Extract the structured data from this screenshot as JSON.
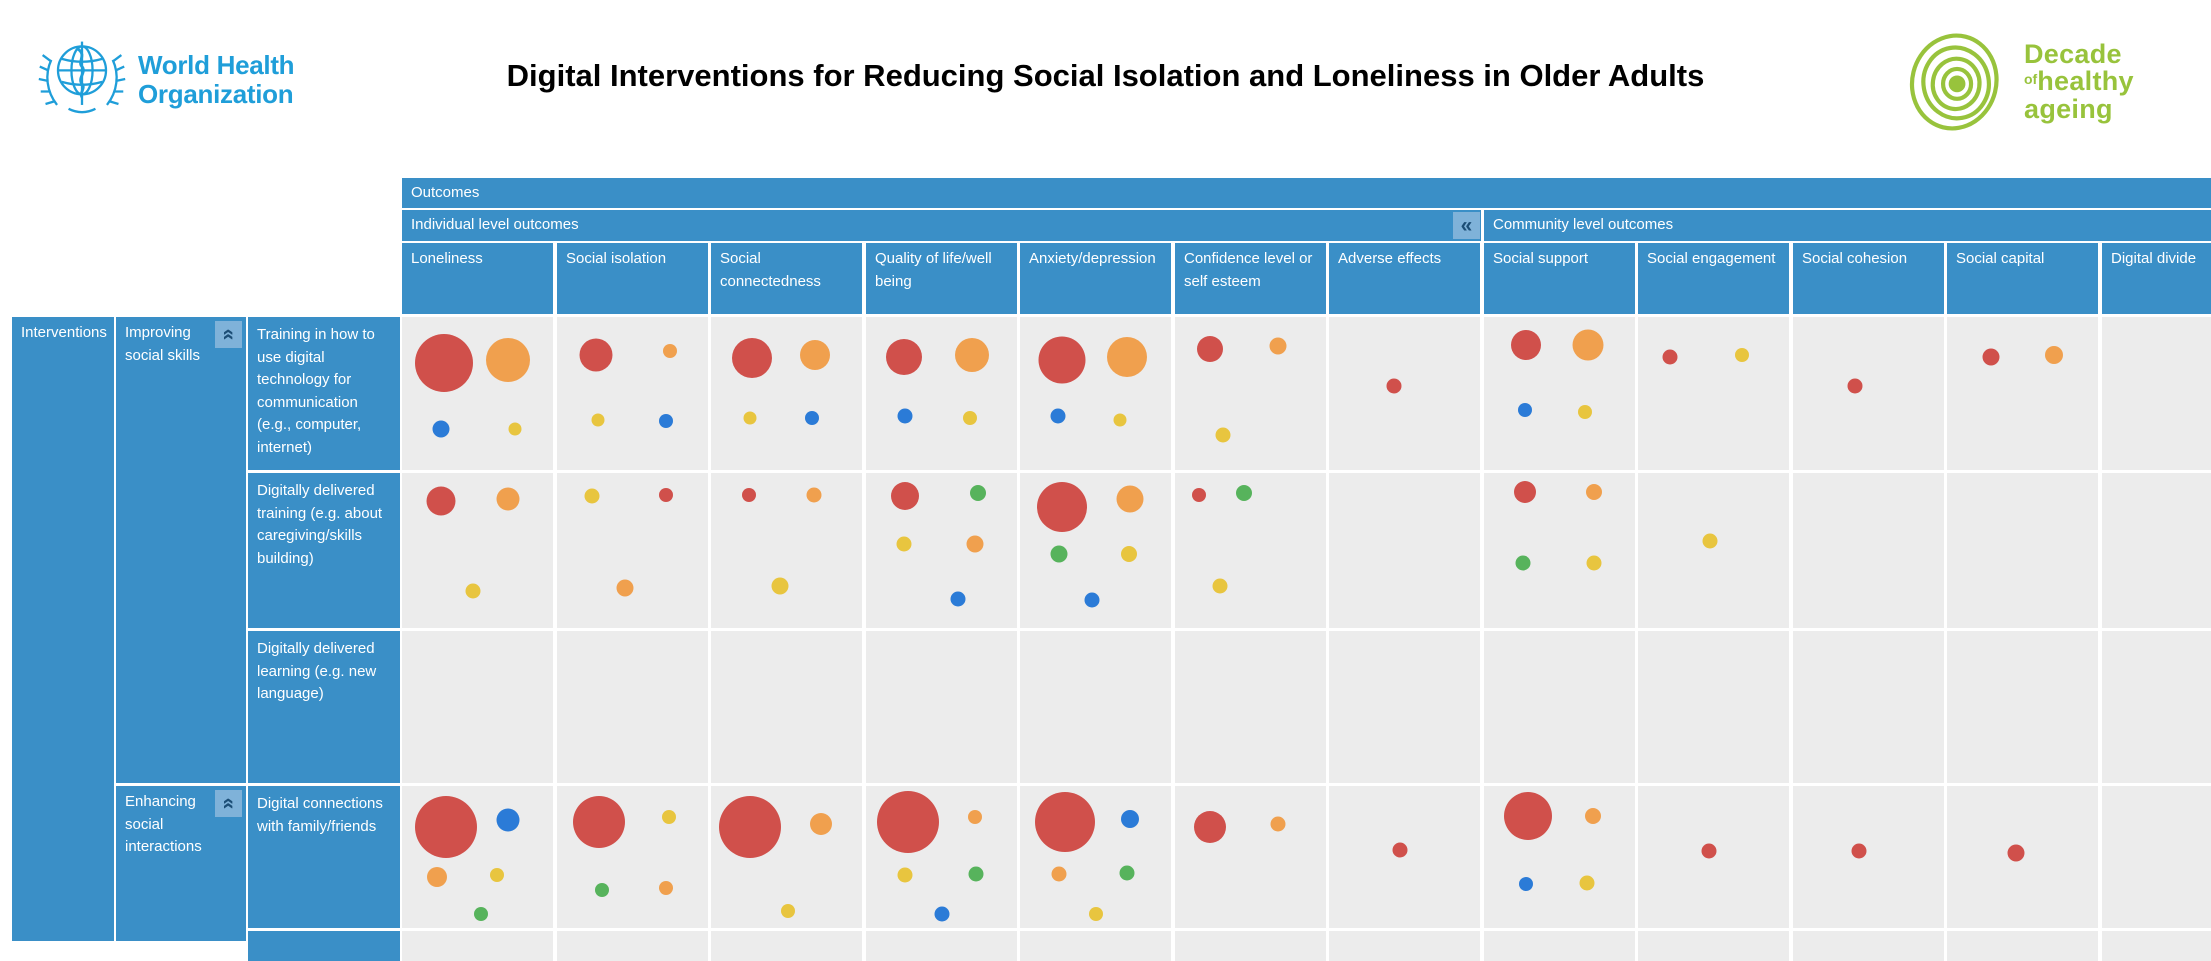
{
  "page": {
    "title": "Digital Interventions for Reducing Social Isolation and Loneliness in Older Adults"
  },
  "who_logo": {
    "line1": "World Health",
    "line2": "Organization"
  },
  "decade_logo": {
    "word1": "Decade",
    "word2_small": "of",
    "word2": "healthy",
    "word3": "ageing"
  },
  "colors": {
    "header_blue": "#3A8FC7",
    "collapse_button_blue": "#7FB2D9",
    "collapse_glyph_navy": "#1C4E76",
    "cell_gray": "#ECECEC",
    "who_blue": "#1F9ED9",
    "decade_green": "#98C33C",
    "title_black": "#000000"
  },
  "chart_data": {
    "type": "bubble-matrix (evidence gap map)",
    "title": "Digital Interventions for Reducing Social Isolation and Loneliness in Older Adults",
    "outcomes_label": "Outcomes",
    "corner_label": "Interventions",
    "column_groups": [
      {
        "label": "Individual level outcomes",
        "span": 7,
        "collapse_icon": "«"
      },
      {
        "label": "Community level outcomes",
        "span": 5
      }
    ],
    "columns": [
      "Loneliness",
      "Social isolation",
      "Social connectedness",
      "Quality of life/well being",
      "Anxiety/depression",
      "Confidence level or self esteem",
      "Adverse effects",
      "Social support",
      "Social engagement",
      "Social cohesion",
      "Social capital",
      "Digital divide"
    ],
    "row_groups": [
      {
        "label": "Improving social skills",
        "rows": [
          0,
          1,
          2
        ],
        "collapse_icon": "«"
      },
      {
        "label": "Enhancing social interactions",
        "rows": [
          3
        ],
        "collapse_icon": "«"
      }
    ],
    "rows": [
      "Training in how to use digital technology for communication (e.g., computer, internet)",
      "Digitally delivered training (e.g. about caregiving/skills building)",
      "Digitally delivered learning (e.g. new language)",
      "Digital connections with family/friends"
    ],
    "bubble_colors": {
      "red": "#D0504B",
      "orange": "#F0A04E",
      "yellow": "#E8C53F",
      "blue": "#2B7BD7",
      "green": "#57B35C"
    },
    "bubble_format": [
      "color",
      "diameter_px",
      "x_pct_of_cell",
      "y_pct_of_cell"
    ],
    "cells": [
      {
        "r": 0,
        "c": 0,
        "b": [
          [
            "red",
            58,
            28,
            30
          ],
          [
            "orange",
            44,
            70,
            28
          ],
          [
            "blue",
            17,
            26,
            73
          ],
          [
            "yellow",
            13,
            75,
            73
          ]
        ]
      },
      {
        "r": 0,
        "c": 1,
        "b": [
          [
            "red",
            33,
            26,
            25
          ],
          [
            "orange",
            14,
            75,
            22
          ],
          [
            "yellow",
            13,
            27,
            67
          ],
          [
            "blue",
            14,
            72,
            68
          ]
        ]
      },
      {
        "r": 0,
        "c": 2,
        "b": [
          [
            "red",
            40,
            27,
            27
          ],
          [
            "orange",
            30,
            69,
            25
          ],
          [
            "yellow",
            13,
            26,
            66
          ],
          [
            "blue",
            14,
            67,
            66
          ]
        ]
      },
      {
        "r": 0,
        "c": 3,
        "b": [
          [
            "red",
            36,
            25,
            26
          ],
          [
            "orange",
            34,
            70,
            25
          ],
          [
            "blue",
            15,
            26,
            65
          ],
          [
            "yellow",
            14,
            69,
            66
          ]
        ]
      },
      {
        "r": 0,
        "c": 4,
        "b": [
          [
            "red",
            47,
            28,
            28
          ],
          [
            "orange",
            40,
            71,
            26
          ],
          [
            "blue",
            15,
            25,
            65
          ],
          [
            "yellow",
            13,
            66,
            67
          ]
        ]
      },
      {
        "r": 0,
        "c": 5,
        "b": [
          [
            "red",
            26,
            23,
            21
          ],
          [
            "orange",
            17,
            68,
            19
          ],
          [
            "yellow",
            15,
            32,
            77
          ]
        ]
      },
      {
        "r": 0,
        "c": 6,
        "b": [
          [
            "red",
            15,
            43,
            45
          ]
        ]
      },
      {
        "r": 0,
        "c": 7,
        "b": [
          [
            "red",
            30,
            28,
            18
          ],
          [
            "orange",
            31,
            69,
            18
          ],
          [
            "blue",
            14,
            27,
            61
          ],
          [
            "yellow",
            14,
            67,
            62
          ]
        ]
      },
      {
        "r": 0,
        "c": 8,
        "b": [
          [
            "red",
            15,
            21,
            26
          ],
          [
            "yellow",
            14,
            69,
            25
          ]
        ]
      },
      {
        "r": 0,
        "c": 9,
        "b": [
          [
            "red",
            15,
            41,
            45
          ]
        ]
      },
      {
        "r": 0,
        "c": 10,
        "b": [
          [
            "red",
            17,
            29,
            26
          ],
          [
            "orange",
            18,
            71,
            25
          ]
        ]
      },
      {
        "r": 1,
        "c": 0,
        "b": [
          [
            "red",
            29,
            26,
            18
          ],
          [
            "orange",
            23,
            70,
            17
          ],
          [
            "yellow",
            15,
            47,
            76
          ]
        ]
      },
      {
        "r": 1,
        "c": 1,
        "b": [
          [
            "yellow",
            15,
            23,
            15
          ],
          [
            "red",
            14,
            72,
            14
          ],
          [
            "orange",
            17,
            45,
            74
          ]
        ]
      },
      {
        "r": 1,
        "c": 2,
        "b": [
          [
            "red",
            14,
            25,
            14
          ],
          [
            "orange",
            15,
            68,
            14
          ],
          [
            "yellow",
            17,
            46,
            73
          ]
        ]
      },
      {
        "r": 1,
        "c": 3,
        "b": [
          [
            "red",
            28,
            26,
            15
          ],
          [
            "green",
            16,
            74,
            13
          ],
          [
            "yellow",
            15,
            25,
            46
          ],
          [
            "orange",
            17,
            72,
            46
          ],
          [
            "blue",
            15,
            61,
            81
          ]
        ]
      },
      {
        "r": 1,
        "c": 4,
        "b": [
          [
            "red",
            50,
            28,
            22
          ],
          [
            "orange",
            27,
            73,
            17
          ],
          [
            "green",
            17,
            26,
            52
          ],
          [
            "yellow",
            16,
            72,
            52
          ],
          [
            "blue",
            15,
            48,
            82
          ]
        ]
      },
      {
        "r": 1,
        "c": 5,
        "b": [
          [
            "red",
            14,
            16,
            14
          ],
          [
            "green",
            16,
            46,
            13
          ],
          [
            "yellow",
            15,
            30,
            73
          ]
        ]
      },
      {
        "r": 1,
        "c": 7,
        "b": [
          [
            "red",
            22,
            27,
            12
          ],
          [
            "orange",
            16,
            73,
            12
          ],
          [
            "green",
            15,
            26,
            58
          ],
          [
            "yellow",
            15,
            73,
            58
          ]
        ]
      },
      {
        "r": 1,
        "c": 8,
        "b": [
          [
            "yellow",
            15,
            48,
            44
          ]
        ]
      },
      {
        "r": 3,
        "c": 0,
        "b": [
          [
            "red",
            62,
            29,
            29
          ],
          [
            "blue",
            23,
            70,
            24
          ],
          [
            "orange",
            20,
            23,
            64
          ],
          [
            "yellow",
            14,
            63,
            63
          ],
          [
            "green",
            14,
            52,
            90
          ]
        ]
      },
      {
        "r": 3,
        "c": 1,
        "b": [
          [
            "red",
            52,
            28,
            25
          ],
          [
            "yellow",
            14,
            74,
            22
          ],
          [
            "green",
            14,
            30,
            73
          ],
          [
            "orange",
            14,
            72,
            72
          ]
        ]
      },
      {
        "r": 3,
        "c": 2,
        "b": [
          [
            "red",
            62,
            26,
            29
          ],
          [
            "orange",
            22,
            73,
            27
          ],
          [
            "yellow",
            14,
            51,
            88
          ]
        ]
      },
      {
        "r": 3,
        "c": 3,
        "b": [
          [
            "red",
            62,
            28,
            25
          ],
          [
            "orange",
            14,
            72,
            22
          ],
          [
            "yellow",
            15,
            26,
            63
          ],
          [
            "green",
            15,
            73,
            62
          ],
          [
            "blue",
            15,
            50,
            90
          ]
        ]
      },
      {
        "r": 3,
        "c": 4,
        "b": [
          [
            "red",
            60,
            30,
            25
          ],
          [
            "blue",
            18,
            73,
            23
          ],
          [
            "orange",
            15,
            26,
            62
          ],
          [
            "green",
            15,
            71,
            61
          ],
          [
            "yellow",
            14,
            50,
            90
          ]
        ]
      },
      {
        "r": 3,
        "c": 5,
        "b": [
          [
            "red",
            32,
            23,
            29
          ],
          [
            "orange",
            15,
            68,
            27
          ]
        ]
      },
      {
        "r": 3,
        "c": 6,
        "b": [
          [
            "red",
            15,
            47,
            45
          ]
        ]
      },
      {
        "r": 3,
        "c": 7,
        "b": [
          [
            "red",
            48,
            29,
            21
          ],
          [
            "orange",
            16,
            72,
            21
          ],
          [
            "blue",
            14,
            28,
            69
          ],
          [
            "yellow",
            15,
            68,
            68
          ]
        ]
      },
      {
        "r": 3,
        "c": 8,
        "b": [
          [
            "red",
            15,
            47,
            46
          ]
        ]
      },
      {
        "r": 3,
        "c": 9,
        "b": [
          [
            "red",
            15,
            44,
            46
          ]
        ]
      },
      {
        "r": 3,
        "c": 10,
        "b": [
          [
            "red",
            17,
            46,
            47
          ]
        ]
      }
    ]
  }
}
